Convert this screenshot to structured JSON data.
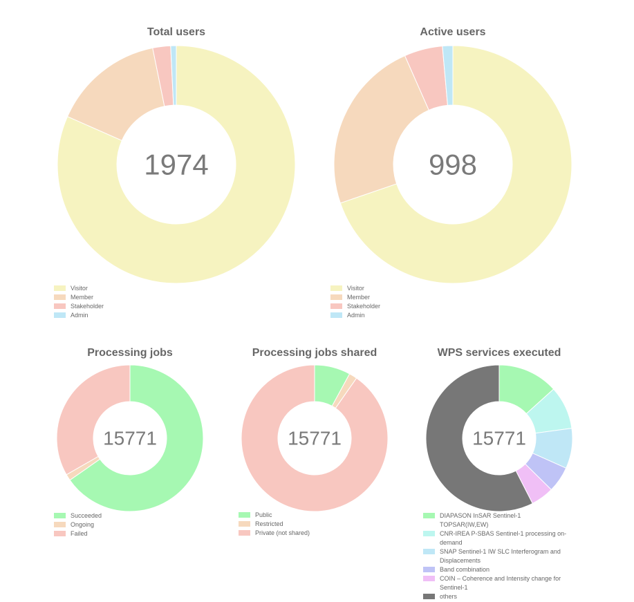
{
  "chart_data": [
    {
      "id": "total-users",
      "type": "pie",
      "title": "Total users",
      "center_value": "1974",
      "categories": [
        "Visitor",
        "Member",
        "Stakeholder",
        "Admin"
      ],
      "values": [
        1611,
        300,
        48,
        15
      ],
      "colors": [
        "#f6f3c0",
        "#f6d9bd",
        "#f8c7c0",
        "#bfe7f6"
      ],
      "legend_position": "bottom-left"
    },
    {
      "id": "active-users",
      "type": "pie",
      "title": "Active users",
      "center_value": "998",
      "categories": [
        "Visitor",
        "Member",
        "Stakeholder",
        "Admin"
      ],
      "values": [
        696,
        236,
        52,
        14
      ],
      "colors": [
        "#f6f3c0",
        "#f6d9bd",
        "#f8c7c0",
        "#bfe7f6"
      ],
      "legend_position": "bottom-left"
    },
    {
      "id": "processing-jobs",
      "type": "pie",
      "title": "Processing jobs",
      "center_value": "15771",
      "categories": [
        "Succeeded",
        "Ongoing",
        "Failed"
      ],
      "values": [
        10300,
        220,
        5251
      ],
      "colors": [
        "#a6f8b2",
        "#f6d9bd",
        "#f8c7c0"
      ],
      "legend_position": "bottom-left"
    },
    {
      "id": "processing-jobs-shared",
      "type": "pie",
      "title": "Processing jobs shared",
      "center_value": "15771",
      "categories": [
        "Public",
        "Restricted",
        "Private (not shared)"
      ],
      "values": [
        1250,
        280,
        14241
      ],
      "colors": [
        "#a6f8b2",
        "#f6d9bd",
        "#f8c7c0"
      ],
      "legend_position": "bottom-left"
    },
    {
      "id": "wps-services-executed",
      "type": "pie",
      "title": "WPS services executed",
      "center_value": "15771",
      "categories": [
        "DIAPASON InSAR Sentinel-1 TOPSAR(IW,EW)",
        "CNR-IREA P-SBAS Sentinel-1 processing on-demand",
        "SNAP Sentinel-1 IW SLC Interferogram and Displacements",
        "Band combination",
        "COIN – Coherence and Intensity change for Sentinel-1",
        "others"
      ],
      "values": [
        2100,
        1500,
        1400,
        900,
        800,
        9071
      ],
      "colors": [
        "#a6f8b2",
        "#bdf6ef",
        "#bfe7f6",
        "#bfc3f6",
        "#f0bff6",
        "#777777"
      ],
      "legend_position": "bottom-left"
    }
  ]
}
